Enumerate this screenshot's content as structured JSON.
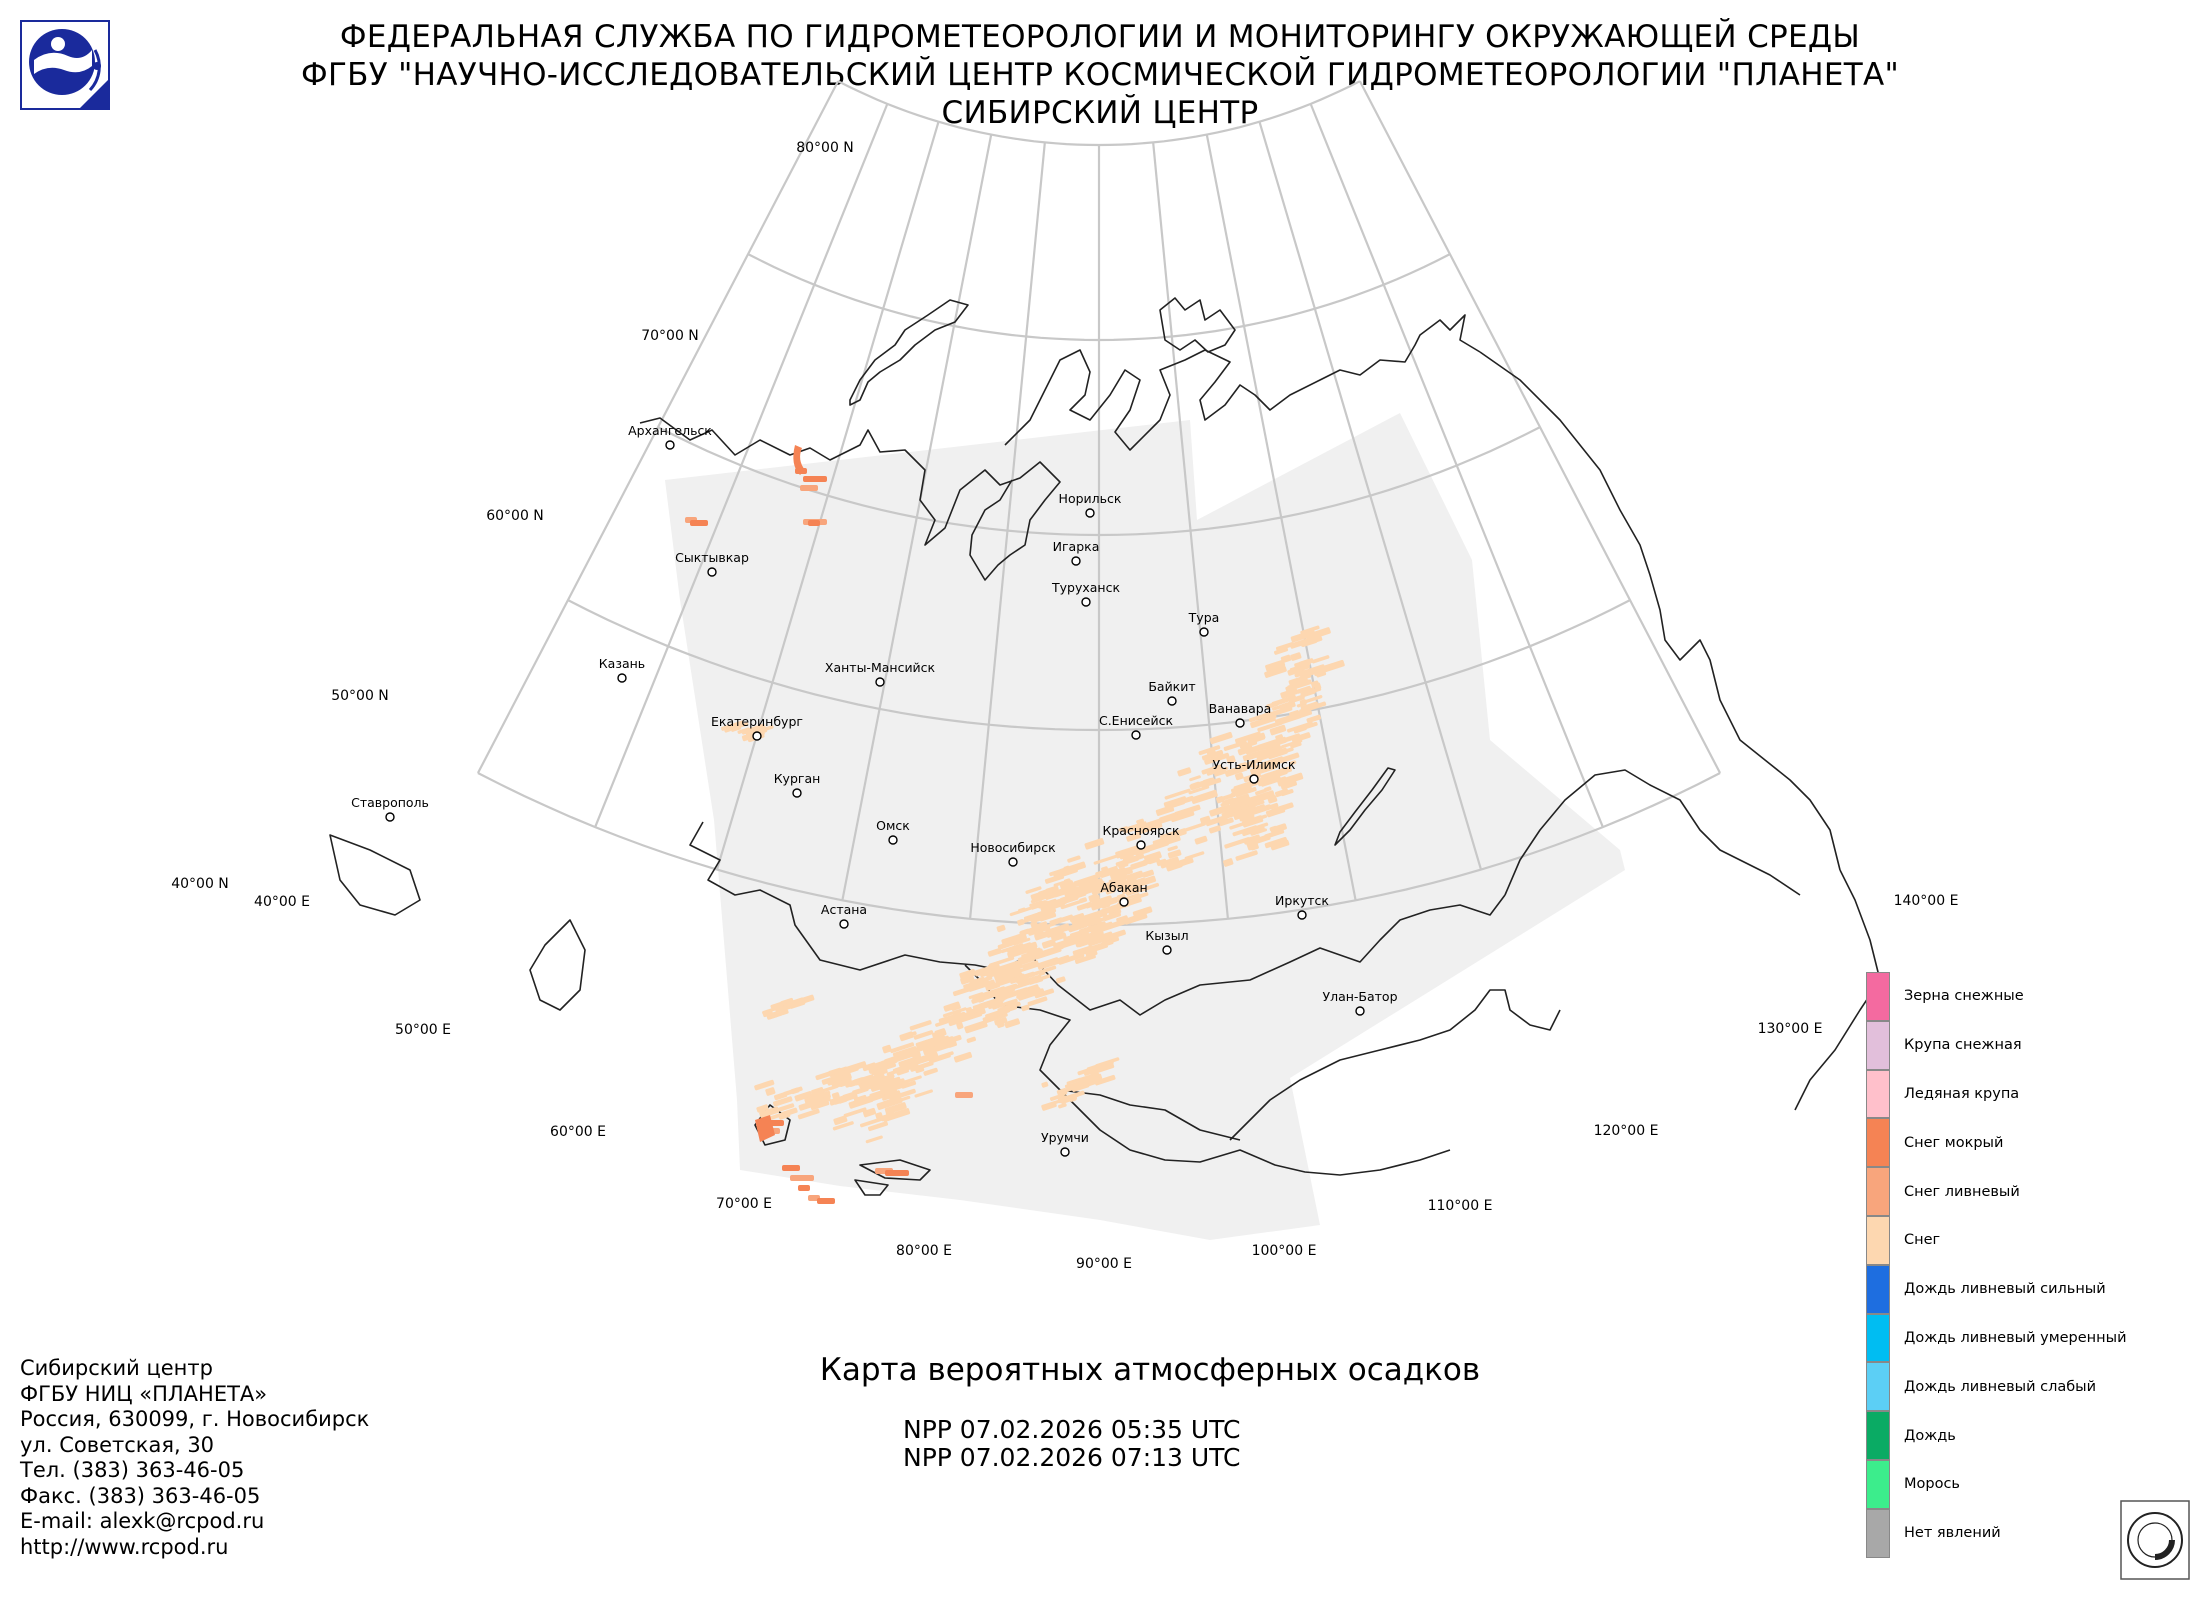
{
  "header": {
    "lines": [
      "ФЕДЕРАЛЬНАЯ СЛУЖБА ПО ГИДРОМЕТЕОРОЛОГИИ И МОНИТОРИНГУ ОКРУЖАЮЩЕЙ СРЕДЫ",
      "ФГБУ \"НАУЧНО-ИССЛЕДОВАТЕЛЬСКИЙ ЦЕНТР КОСМИЧЕСКОЙ ГИДРОМЕТЕОРОЛОГИИ \"ПЛАНЕТА\"",
      "СИБИРСКИЙ ЦЕНТР"
    ]
  },
  "map": {
    "lat_labels": [
      "80°00 N",
      "70°00 N",
      "60°00 N",
      "50°00 N",
      "40°00 N"
    ],
    "lon_labels": [
      "40°00 E",
      "50°00 E",
      "60°00 E",
      "70°00 E",
      "80°00 E",
      "90°00 E",
      "100°00 E",
      "110°00 E",
      "120°00 E",
      "130°00 E",
      "140°00 E"
    ],
    "cities": [
      "Архангельск",
      "Сыктывкар",
      "Казань",
      "Ставрополь",
      "Екатеринбург",
      "Курган",
      "Ханты-Мансийск",
      "Омск",
      "Астана",
      "Новосибирск",
      "Норильск",
      "Игарка",
      "Туруханск",
      "Тура",
      "Байкит",
      "Ванавара",
      "С.Енисейск",
      "Усть-Илимск",
      "Красноярск",
      "Абакан",
      "Кызыл",
      "Иркутск",
      "Улан-Батор",
      "Урумчи"
    ],
    "colors": {
      "coverage": "#f0f0f0",
      "graticule": "#c8c8c8",
      "coast": "#222222",
      "snow": "#fdd7b0",
      "snow_showers": "#f8a57c",
      "wet_snow": "#f58354"
    }
  },
  "map_title": "Карта вероятных атмосферных осадков",
  "passes": [
    "NPP 07.02.2026  05:35 UTC",
    "NPP 07.02.2026  07:13 UTC"
  ],
  "contacts": [
    "Сибирский центр",
    "ФГБУ НИЦ «ПЛАНЕТА»",
    "Россия, 630099, г. Новосибирск",
    "ул. Советская, 30",
    "Тел. (383) 363-46-05",
    "Факс. (383) 363-46-05",
    "E-mail: alexk@rcpod.ru",
    "http://www.rcpod.ru"
  ],
  "legend": [
    {
      "label": "Зерна снежные",
      "color": "#f46aa0"
    },
    {
      "label": "Крупа снежная",
      "color": "#e2bfdb"
    },
    {
      "label": "Ледяная крупа",
      "color": "#ffc0cb"
    },
    {
      "label": "Снег мокрый",
      "color": "#f58354"
    },
    {
      "label": "Снег ливневый",
      "color": "#f8a57c"
    },
    {
      "label": "Снег",
      "color": "#fdd7b0"
    },
    {
      "label": "Дождь ливневый сильный",
      "color": "#1e6ee0"
    },
    {
      "label": "Дождь ливневый умеренный",
      "color": "#00bdf2"
    },
    {
      "label": "Дождь ливневый слабый",
      "color": "#5ccff5"
    },
    {
      "label": "Дождь",
      "color": "#0aab64"
    },
    {
      "label": "Морось",
      "color": "#3ced8c"
    },
    {
      "label": "Нет явлений",
      "color": "#a8a8a8"
    }
  ]
}
